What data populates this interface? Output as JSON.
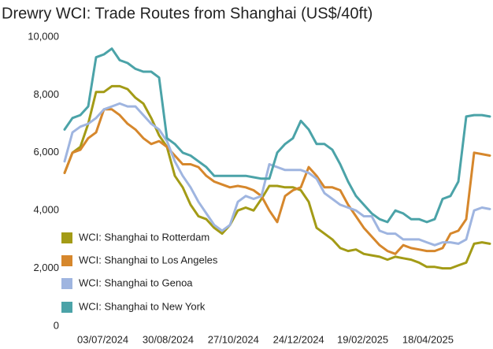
{
  "chart_data": {
    "type": "line",
    "title": "Drewry WCI: Trade Routes from Shanghai (US$/40ft)",
    "x": [
      "30/05/2024",
      "06/06/2024",
      "13/06/2024",
      "20/06/2024",
      "27/06/2024",
      "04/07/2024",
      "11/07/2024",
      "18/07/2024",
      "25/07/2024",
      "01/08/2024",
      "08/08/2024",
      "15/08/2024",
      "22/08/2024",
      "29/08/2024",
      "05/09/2024",
      "12/09/2024",
      "19/09/2024",
      "26/09/2024",
      "03/10/2024",
      "10/10/2024",
      "17/10/2024",
      "24/10/2024",
      "31/10/2024",
      "07/11/2024",
      "14/11/2024",
      "21/11/2024",
      "28/11/2024",
      "05/12/2024",
      "12/12/2024",
      "19/12/2024",
      "26/12/2024",
      "02/01/2025",
      "09/01/2025",
      "16/01/2025",
      "23/01/2025",
      "30/01/2025",
      "06/02/2025",
      "13/02/2025",
      "20/02/2025",
      "27/02/2025",
      "06/03/2025",
      "13/03/2025",
      "20/03/2025",
      "27/03/2025",
      "03/04/2025",
      "10/04/2025",
      "17/04/2025",
      "24/04/2025",
      "01/05/2025",
      "08/05/2025",
      "15/05/2025",
      "22/05/2025",
      "29/05/2025",
      "05/06/2025",
      "12/06/2025"
    ],
    "xlim": [
      "30/05/2024",
      "12/06/2025"
    ],
    "xticks": [
      "03/07/2024",
      "30/08/2024",
      "27/10/2024",
      "24/12/2024",
      "19/02/2025",
      "18/04/2025"
    ],
    "ylim": [
      0,
      10000
    ],
    "yticks": [
      0,
      {
        "value": 2000,
        "label": "2,000"
      },
      {
        "value": 4000,
        "label": "4,000"
      },
      {
        "value": 6000,
        "label": "6,000"
      },
      {
        "value": 8000,
        "label": "8,000"
      },
      {
        "value": 10000,
        "label": "10,000"
      }
    ],
    "series": [
      {
        "name": "WCI: Shanghai to Rotterdam",
        "color": "#a39b16",
        "values": [
          5300,
          6000,
          6200,
          7000,
          8100,
          8100,
          8300,
          8300,
          8200,
          7900,
          7700,
          7200,
          6600,
          6200,
          5200,
          4800,
          4200,
          3800,
          3700,
          3400,
          3200,
          3500,
          4000,
          4100,
          4000,
          4400,
          4850,
          4850,
          4800,
          4800,
          4700,
          4300,
          3400,
          3200,
          3000,
          2700,
          2600,
          2650,
          2500,
          2450,
          2400,
          2300,
          2400,
          2350,
          2300,
          2200,
          2050,
          2050,
          2000,
          2000,
          2100,
          2200,
          2850,
          2900,
          2850
        ]
      },
      {
        "name": "WCI: Shanghai to Los Angeles",
        "color": "#d6872c",
        "values": [
          5300,
          6000,
          6100,
          6500,
          6700,
          7500,
          7500,
          7300,
          7000,
          6800,
          6500,
          6300,
          6400,
          6200,
          5900,
          5600,
          5600,
          5500,
          5200,
          5000,
          4900,
          4800,
          4850,
          4800,
          4700,
          4500,
          4000,
          3600,
          4500,
          4700,
          4800,
          5500,
          5200,
          4800,
          4800,
          4700,
          4200,
          3800,
          3400,
          3100,
          2800,
          2600,
          2500,
          2800,
          2700,
          2650,
          2600,
          2600,
          2700,
          3200,
          3300,
          3700,
          6000,
          5950,
          5900
        ]
      },
      {
        "name": "WCI: Shanghai to Genoa",
        "color": "#9fb5e0",
        "values": [
          5700,
          6700,
          6900,
          7000,
          7200,
          7500,
          7600,
          7700,
          7600,
          7600,
          7300,
          7000,
          6800,
          6400,
          5700,
          5200,
          4800,
          4300,
          3900,
          3500,
          3300,
          3500,
          4300,
          4500,
          4400,
          4500,
          5600,
          5500,
          5400,
          5400,
          5400,
          5300,
          5100,
          4600,
          4400,
          4200,
          4100,
          4000,
          3800,
          3800,
          3300,
          3200,
          3200,
          3000,
          3000,
          3000,
          2900,
          2800,
          2900,
          2900,
          2850,
          3000,
          4000,
          4100,
          4050
        ]
      },
      {
        "name": "WCI: Shanghai to New York",
        "color": "#4ba3a8",
        "values": [
          6800,
          7200,
          7300,
          7600,
          9300,
          9400,
          9600,
          9200,
          9100,
          8900,
          8800,
          8800,
          8600,
          6500,
          6300,
          6000,
          5900,
          5700,
          5500,
          5200,
          5200,
          5200,
          5200,
          5200,
          5150,
          5100,
          5100,
          6000,
          6300,
          6500,
          7100,
          6800,
          6300,
          6300,
          6100,
          5600,
          5000,
          4500,
          4200,
          3900,
          3700,
          3600,
          4000,
          3900,
          3700,
          3700,
          3600,
          3700,
          4400,
          4500,
          5000,
          7250,
          7300,
          7300,
          7250
        ]
      }
    ]
  }
}
